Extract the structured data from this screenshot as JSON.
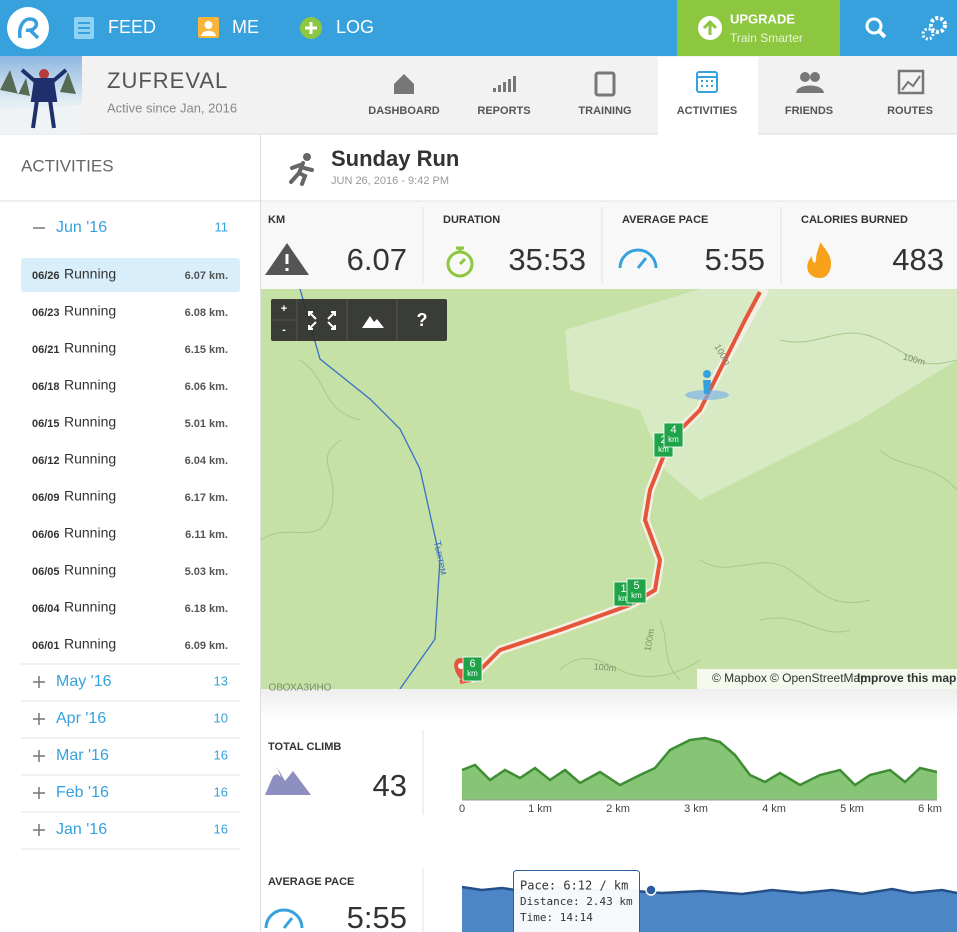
{
  "header": {
    "nav": [
      "FEED",
      "ME",
      "LOG"
    ],
    "upgrade": {
      "title": "UPGRADE",
      "subtitle": "Train Smarter"
    }
  },
  "profile": {
    "name": "ZUFREVAL",
    "since": "Active since Jan, 2016"
  },
  "tabs": [
    "DASHBOARD",
    "REPORTS",
    "TRAINING",
    "ACTIVITIES",
    "FRIENDS",
    "ROUTES"
  ],
  "active_tab": 3,
  "sidebar": {
    "title": "ACTIVITIES",
    "selected": 0,
    "months": [
      {
        "label": "Jun '16",
        "count": "11",
        "expanded": true,
        "activities": [
          {
            "date": "06/26",
            "type": "Running",
            "distance": "6.07 km."
          },
          {
            "date": "06/23",
            "type": "Running",
            "distance": "6.08 km."
          },
          {
            "date": "06/21",
            "type": "Running",
            "distance": "6.15 km."
          },
          {
            "date": "06/18",
            "type": "Running",
            "distance": "6.06 km."
          },
          {
            "date": "06/15",
            "type": "Running",
            "distance": "5.01 km."
          },
          {
            "date": "06/12",
            "type": "Running",
            "distance": "6.04 km."
          },
          {
            "date": "06/09",
            "type": "Running",
            "distance": "6.17 km."
          },
          {
            "date": "06/06",
            "type": "Running",
            "distance": "6.11 km."
          },
          {
            "date": "06/05",
            "type": "Running",
            "distance": "5.03 km."
          },
          {
            "date": "06/04",
            "type": "Running",
            "distance": "6.18 km."
          },
          {
            "date": "06/01",
            "type": "Running",
            "distance": "6.09 km."
          }
        ]
      },
      {
        "label": "May '16",
        "count": "13",
        "expanded": false
      },
      {
        "label": "Apr '16",
        "count": "10",
        "expanded": false
      },
      {
        "label": "Mar '16",
        "count": "16",
        "expanded": false
      },
      {
        "label": "Feb '16",
        "count": "16",
        "expanded": false
      },
      {
        "label": "Jan '16",
        "count": "16",
        "expanded": false
      }
    ]
  },
  "activity": {
    "title": "Sunday Run",
    "datetime": "JUN 26, 2016 - 9:42 PM",
    "stats": [
      {
        "label": "KM",
        "value": "6.07"
      },
      {
        "label": "DURATION",
        "value": "35:53"
      },
      {
        "label": "AVERAGE PACE",
        "value": "5:55"
      },
      {
        "label": "CALORIES BURNED",
        "value": "483"
      }
    ]
  },
  "map": {
    "controls": [
      "+",
      "-",
      "?"
    ],
    "labels": [
      "Тыхтем",
      "100m",
      "100m",
      "100m",
      "100m",
      "ОВОХАЗИНО"
    ],
    "markers": [
      {
        "n": "6",
        "unit": "km"
      },
      {
        "n": "1",
        "unit": "km"
      },
      {
        "n": "5",
        "unit": "km"
      },
      {
        "n": "2",
        "unit": "km"
      },
      {
        "n": "4",
        "unit": "km"
      }
    ],
    "attribution": [
      "© Mapbox",
      "© OpenStreetMap",
      "Improve this map"
    ]
  },
  "climb": {
    "label": "TOTAL CLIMB",
    "value": "43",
    "ticks": [
      "0",
      "1 km",
      "2 km",
      "3 km",
      "4 km",
      "5 km",
      "6 km"
    ]
  },
  "pace": {
    "label": "AVERAGE PACE",
    "value": "5:55",
    "tooltip": [
      "Pace: 6:12 / km",
      "Distance: 2.43 km",
      "Time: 14:14"
    ]
  }
}
